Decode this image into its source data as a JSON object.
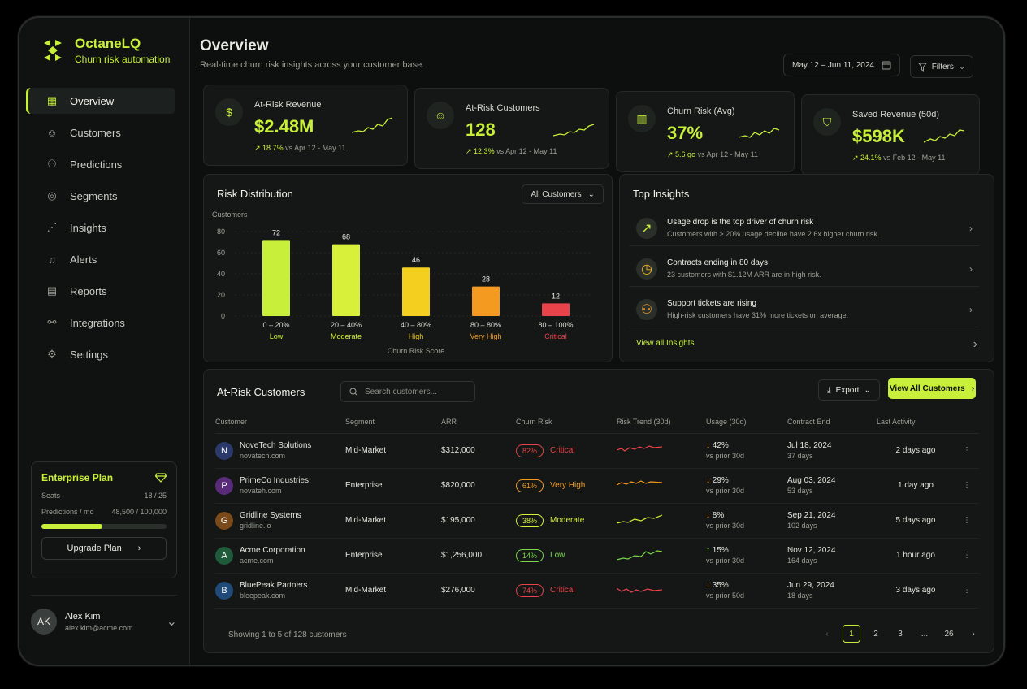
{
  "brand": {
    "name": "OctaneLQ",
    "tagline": "Churn risk automation"
  },
  "nav": [
    {
      "label": "Overview",
      "icon": "grid-icon",
      "active": true
    },
    {
      "label": "Customers",
      "icon": "user-icon"
    },
    {
      "label": "Predictions",
      "icon": "predictions-icon"
    },
    {
      "label": "Segments",
      "icon": "segments-icon"
    },
    {
      "label": "Insights",
      "icon": "insights-icon"
    },
    {
      "label": "Alerts",
      "icon": "bell-icon"
    },
    {
      "label": "Reports",
      "icon": "document-icon"
    },
    {
      "label": "Integrations",
      "icon": "integrations-icon"
    },
    {
      "label": "Settings",
      "icon": "gear-icon"
    }
  ],
  "plan": {
    "title": "Enterprise Plan",
    "seats_label": "Seats",
    "seats_value": "18 / 25",
    "predictions_label": "Predictions / mo",
    "predictions_value": "48,500 / 100,000",
    "usage_fraction": 0.485,
    "upgrade_label": "Upgrade Plan"
  },
  "user": {
    "name": "Alex Kim",
    "email": "alex.kim@acme.com",
    "initials": "AK"
  },
  "header": {
    "title": "Overview",
    "subtitle": "Real-time churn risk insights across your customer base.",
    "date_range": "May 12 – Jun 11, 2024",
    "filters_label": "Filters"
  },
  "kpis": [
    {
      "label": "At-Risk Revenue",
      "value": "$2.48M",
      "delta": "18.7%",
      "compare": "vs Apr 12 - May 11",
      "icon": "dollar-icon"
    },
    {
      "label": "At-Risk Customers",
      "value": "128",
      "delta": "12.3%",
      "compare": "vs Apr 12 - May 11",
      "icon": "person-icon"
    },
    {
      "label": "Churn Risk (Avg)",
      "value": "37%",
      "delta": "5.6 go",
      "compare": "vs Apr 12 - May 11",
      "icon": "bar-chart-icon"
    },
    {
      "label": "Saved Revenue (50d)",
      "value": "$598K",
      "delta": "24.1%",
      "compare": "vs Feb 12 - May 11",
      "icon": "shield-icon"
    }
  ],
  "risk_distribution": {
    "title": "Risk Distribution",
    "filter": "All Customers"
  },
  "chart_data": {
    "type": "bar",
    "categories": [
      "0 – 20%",
      "20 – 40%",
      "40 – 80%",
      "80 – 80%",
      "80 – 100%"
    ],
    "category_labels": [
      "Low",
      "Moderate",
      "High",
      "Very High",
      "Critical"
    ],
    "values": [
      72,
      68,
      46,
      28,
      12
    ],
    "colors": [
      "#c8f03a",
      "#d8f03a",
      "#f5cf20",
      "#f59a20",
      "#e8434a"
    ],
    "xlabel": "Churn Risk Score",
    "ylabel": "Customers",
    "yticks": [
      0,
      20,
      40,
      60,
      80
    ],
    "ylim": [
      0,
      80
    ]
  },
  "insights": {
    "title": "Top Insights",
    "items": [
      {
        "title": "Usage drop is the top driver of churn risk",
        "desc": "Customers with > 20% usage decline have 2.6x higher churn risk.",
        "icon": "trend-up-icon"
      },
      {
        "title": "Contracts ending in 80 days",
        "desc": "23 customers with $1.12M ARR are in high risk.",
        "icon": "clock-icon"
      },
      {
        "title": "Support tickets are rising",
        "desc": "High-risk customers have 31% more tickets on average.",
        "icon": "people-icon"
      }
    ],
    "view_all": "View all Insights"
  },
  "table": {
    "title": "At-Risk Customers",
    "search_placeholder": "Search customers...",
    "export_label": "Export",
    "view_all_label": "View All Customers",
    "columns": [
      "Customer",
      "Segment",
      "ARR",
      "Churn Risk",
      "Risk Trend (30d)",
      "Usage (30d)",
      "Contract End",
      "Last Activity"
    ],
    "rows": [
      {
        "initial": "N",
        "avatar_color": "#2b3a6b",
        "name": "NoveTech Solutions",
        "domain": "novatech.com",
        "segment": "Mid-Market",
        "arr": "$312,000",
        "risk": "82%",
        "risk_label": "Critical",
        "risk_color": "#e8434a",
        "usage": "42%",
        "usage_dir": "down",
        "usage_cmp": "vs prior 30d",
        "contract": "Jul 18, 2024",
        "contract_days": "37 days",
        "activity": "2 days ago"
      },
      {
        "initial": "P",
        "avatar_color": "#5a2b7a",
        "name": "PrimeCo Industries",
        "domain": "novateh.com",
        "segment": "Enterprise",
        "arr": "$820,000",
        "risk": "61%",
        "risk_label": "Very High",
        "risk_color": "#f59a20",
        "usage": "29%",
        "usage_dir": "down",
        "usage_cmp": "vs prior 30d",
        "contract": "Aug 03, 2024",
        "contract_days": "53 days",
        "activity": "1 day ago"
      },
      {
        "initial": "G",
        "avatar_color": "#7a4a1a",
        "name": "Gridline Systems",
        "domain": "gridline.io",
        "segment": "Mid-Market",
        "arr": "$195,000",
        "risk": "38%",
        "risk_label": "Moderate",
        "risk_color": "#d8f03a",
        "usage": "8%",
        "usage_dir": "down",
        "usage_cmp": "vs prior 30d",
        "contract": "Sep 21, 2024",
        "contract_days": "102 days",
        "activity": "5 days ago"
      },
      {
        "initial": "A",
        "avatar_color": "#1f5a3a",
        "name": "Acme Corporation",
        "domain": "acme.com",
        "segment": "Enterprise",
        "arr": "$1,256,000",
        "risk": "14%",
        "risk_label": "Low",
        "risk_color": "#7ad84a",
        "usage": "15%",
        "usage_dir": "up",
        "usage_cmp": "vs prior 30d",
        "contract": "Nov 12, 2024",
        "contract_days": "164 days",
        "activity": "1 hour ago"
      },
      {
        "initial": "B",
        "avatar_color": "#1f4a7a",
        "name": "BluePeak Partners",
        "domain": "bleepeak.com",
        "segment": "Mid-Market",
        "arr": "$276,000",
        "risk": "74%",
        "risk_label": "Critical",
        "risk_color": "#e8434a",
        "usage": "35%",
        "usage_dir": "down",
        "usage_cmp": "vs prior 50d",
        "contract": "Jun 29, 2024",
        "contract_days": "18 days",
        "activity": "3 days ago"
      }
    ],
    "footer": "Showing 1 to 5 of 128 customers",
    "pages": [
      "1",
      "2",
      "3",
      "...",
      "26"
    ]
  }
}
